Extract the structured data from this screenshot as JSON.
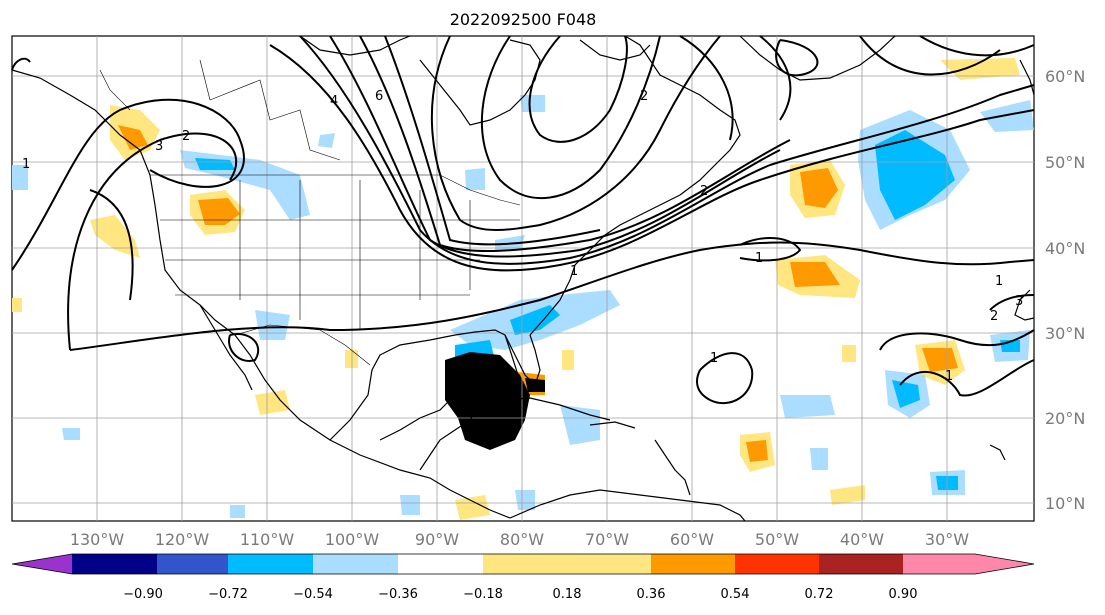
{
  "title": "2022092500 F048",
  "map": {
    "lat_labels": [
      "60°N",
      "50°N",
      "40°N",
      "30°N",
      "20°N",
      "10°N"
    ],
    "lon_labels": [
      "130°W",
      "120°W",
      "110°W",
      "100°W",
      "90°W",
      "80°W",
      "70°W",
      "60°W",
      "50°W",
      "40°W",
      "30°W"
    ],
    "contour_labels": [
      "1",
      "2",
      "3",
      "4",
      "6",
      "1",
      "1",
      "2",
      "1",
      "1",
      "2",
      "3",
      "2",
      "1"
    ]
  },
  "colorbar": {
    "ticks": [
      "−0.90",
      "−0.72",
      "−0.54",
      "−0.36",
      "−0.18",
      "0.18",
      "0.36",
      "0.54",
      "0.72",
      "0.90"
    ],
    "colors": [
      "#9933cc",
      "#000088",
      "#3355cc",
      "#00bbff",
      "#aaddff",
      "#ffffff",
      "#ffe680",
      "#ff9900",
      "#ff3300",
      "#aa2222",
      "#ff88aa"
    ]
  },
  "colors": {
    "neg_strong": "#00bbff",
    "neg_light": "#aaddff",
    "pos_light": "#ffe680",
    "pos_strong": "#ff9900",
    "stipple": "#000000"
  }
}
